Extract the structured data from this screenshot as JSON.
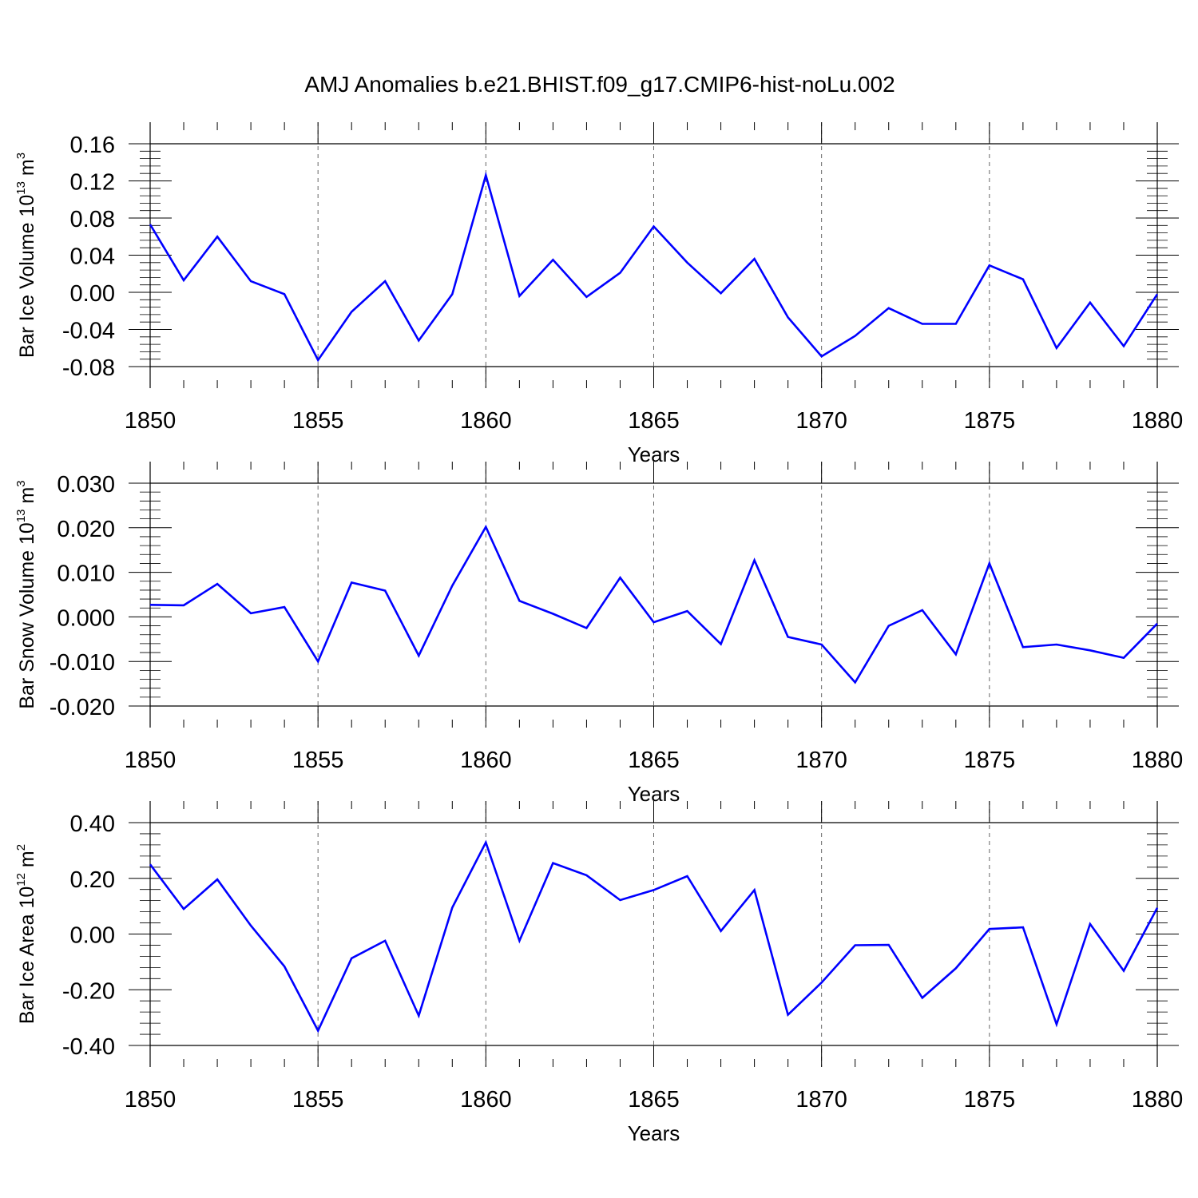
{
  "title": "AMJ Anomalies b.e21.BHIST.f09_g17.CMIP6-hist-noLu.002",
  "colors": {
    "line": "#0000ff",
    "axis": "#000000",
    "grid": "#666666",
    "background": "#ffffff"
  },
  "chart_data": [
    {
      "type": "line",
      "xlabel": "Years",
      "ylabel": {
        "main": "Bar Ice Volume 10",
        "sup": "13",
        "unit": " m",
        "unit_sup": "3"
      },
      "xlim": [
        1850,
        1880
      ],
      "ylim": [
        -0.08,
        0.16
      ],
      "xticks": [
        1850,
        1855,
        1860,
        1865,
        1870,
        1875,
        1880
      ],
      "xtick_labels": [
        "1850",
        "1855",
        "1860",
        "1865",
        "1870",
        "1875",
        "1880"
      ],
      "yticks": [
        -0.08,
        -0.04,
        0.0,
        0.04,
        0.08,
        0.12,
        0.16
      ],
      "ytick_labels": [
        "-0.08",
        "-0.04",
        "0.00",
        "0.04",
        "0.08",
        "0.12",
        "0.16"
      ],
      "yminor_step": 0.008,
      "grid": "x-dashed",
      "x": [
        1850,
        1851,
        1852,
        1853,
        1854,
        1855,
        1856,
        1857,
        1858,
        1859,
        1860,
        1861,
        1862,
        1863,
        1864,
        1865,
        1866,
        1867,
        1868,
        1869,
        1870,
        1871,
        1872,
        1873,
        1874,
        1875,
        1876,
        1877,
        1878,
        1879,
        1880
      ],
      "values": [
        0.073,
        0.013,
        0.06,
        0.012,
        -0.002,
        -0.073,
        -0.021,
        0.012,
        -0.052,
        -0.002,
        0.126,
        -0.004,
        0.035,
        -0.005,
        0.021,
        0.071,
        0.032,
        -0.001,
        0.036,
        -0.027,
        -0.069,
        -0.047,
        -0.017,
        -0.034,
        -0.034,
        0.029,
        0.014,
        -0.06,
        -0.011,
        -0.058,
        -0.002
      ]
    },
    {
      "type": "line",
      "xlabel": "Years",
      "ylabel": {
        "main": "Bar Snow Volume 10",
        "sup": "13",
        "unit": " m",
        "unit_sup": "3"
      },
      "xlim": [
        1850,
        1880
      ],
      "ylim": [
        -0.02,
        0.03
      ],
      "xticks": [
        1850,
        1855,
        1860,
        1865,
        1870,
        1875,
        1880
      ],
      "xtick_labels": [
        "1850",
        "1855",
        "1860",
        "1865",
        "1870",
        "1875",
        "1880"
      ],
      "yticks": [
        -0.02,
        -0.01,
        0.0,
        0.01,
        0.02,
        0.03
      ],
      "ytick_labels": [
        "-0.020",
        "-0.010",
        "0.000",
        "0.010",
        "0.020",
        "0.030"
      ],
      "yminor_step": 0.002,
      "grid": "x-dashed",
      "x": [
        1850,
        1851,
        1852,
        1853,
        1854,
        1855,
        1856,
        1857,
        1858,
        1859,
        1860,
        1861,
        1862,
        1863,
        1864,
        1865,
        1866,
        1867,
        1868,
        1869,
        1870,
        1871,
        1872,
        1873,
        1874,
        1875,
        1876,
        1877,
        1878,
        1879,
        1880
      ],
      "values": [
        0.0027,
        0.0026,
        0.0074,
        0.0008,
        0.0022,
        -0.01,
        0.0077,
        0.0059,
        -0.0087,
        0.007,
        0.0202,
        0.0036,
        0.0007,
        -0.0025,
        0.0088,
        -0.0012,
        0.0013,
        -0.0061,
        0.0127,
        -0.0045,
        -0.0062,
        -0.0147,
        -0.002,
        0.0015,
        -0.0084,
        0.012,
        -0.0068,
        -0.0062,
        -0.0075,
        -0.0092,
        -0.0015
      ]
    },
    {
      "type": "line",
      "xlabel": "Years",
      "ylabel": {
        "main": "Bar Ice Area 10",
        "sup": "12",
        "unit": " m",
        "unit_sup": "2"
      },
      "xlim": [
        1850,
        1880
      ],
      "ylim": [
        -0.4,
        0.4
      ],
      "xticks": [
        1850,
        1855,
        1860,
        1865,
        1870,
        1875,
        1880
      ],
      "xtick_labels": [
        "1850",
        "1855",
        "1860",
        "1865",
        "1870",
        "1875",
        "1880"
      ],
      "yticks": [
        -0.4,
        -0.2,
        0.0,
        0.2,
        0.4
      ],
      "ytick_labels": [
        "-0.40",
        "-0.20",
        "0.00",
        "0.20",
        "0.40"
      ],
      "yminor_step": 0.04,
      "grid": "x-dashed",
      "x": [
        1850,
        1851,
        1852,
        1853,
        1854,
        1855,
        1856,
        1857,
        1858,
        1859,
        1860,
        1861,
        1862,
        1863,
        1864,
        1865,
        1866,
        1867,
        1868,
        1869,
        1870,
        1871,
        1872,
        1873,
        1874,
        1875,
        1876,
        1877,
        1878,
        1879,
        1880
      ],
      "values": [
        0.25,
        0.09,
        0.196,
        0.03,
        -0.116,
        -0.347,
        -0.087,
        -0.024,
        -0.293,
        0.095,
        0.329,
        -0.024,
        0.255,
        0.211,
        0.122,
        0.158,
        0.208,
        0.011,
        0.158,
        -0.29,
        -0.174,
        -0.04,
        -0.039,
        -0.229,
        -0.123,
        0.018,
        0.024,
        -0.324,
        0.036,
        -0.132,
        0.094
      ]
    }
  ]
}
